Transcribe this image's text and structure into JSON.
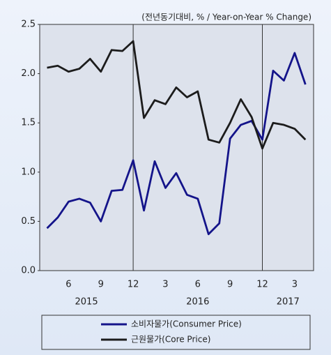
{
  "chart_data": {
    "type": "line",
    "subtitle": "(전년동기대비, % / Year-on-Year % Change)",
    "categories": [
      null,
      null,
      "6",
      null,
      null,
      "9",
      null,
      null,
      "12",
      null,
      null,
      "3",
      null,
      null,
      "6",
      null,
      null,
      "9",
      null,
      null,
      "12",
      null,
      null,
      "3",
      null
    ],
    "years": [
      "2015",
      "2016",
      "2017"
    ],
    "series": [
      {
        "name": "소비자물가(Consumer Price)",
        "color": "#14148a",
        "values": [
          0.43,
          0.54,
          0.7,
          0.73,
          0.69,
          0.5,
          0.81,
          0.82,
          1.12,
          0.61,
          1.11,
          0.84,
          0.99,
          0.77,
          0.73,
          0.37,
          0.48,
          1.34,
          1.48,
          1.52,
          1.33,
          2.03,
          1.93,
          2.21,
          1.89
        ]
      },
      {
        "name": "근원물가(Core Price)",
        "color": "#1c1c1c",
        "values": [
          2.06,
          2.08,
          2.02,
          2.05,
          2.15,
          2.02,
          2.24,
          2.23,
          2.33,
          1.55,
          1.73,
          1.69,
          1.86,
          1.76,
          1.82,
          1.33,
          1.3,
          1.5,
          1.74,
          1.56,
          1.24,
          1.5,
          1.48,
          1.44,
          1.33
        ]
      }
    ],
    "ylim": [
      0,
      2.5
    ],
    "yticks": [
      {
        "value": 0,
        "label": "0.0"
      },
      0.5,
      {
        "value": 1,
        "label": "1.0"
      },
      1.5,
      {
        "value": 2,
        "label": "2.0"
      },
      2.5
    ],
    "grid": false
  }
}
